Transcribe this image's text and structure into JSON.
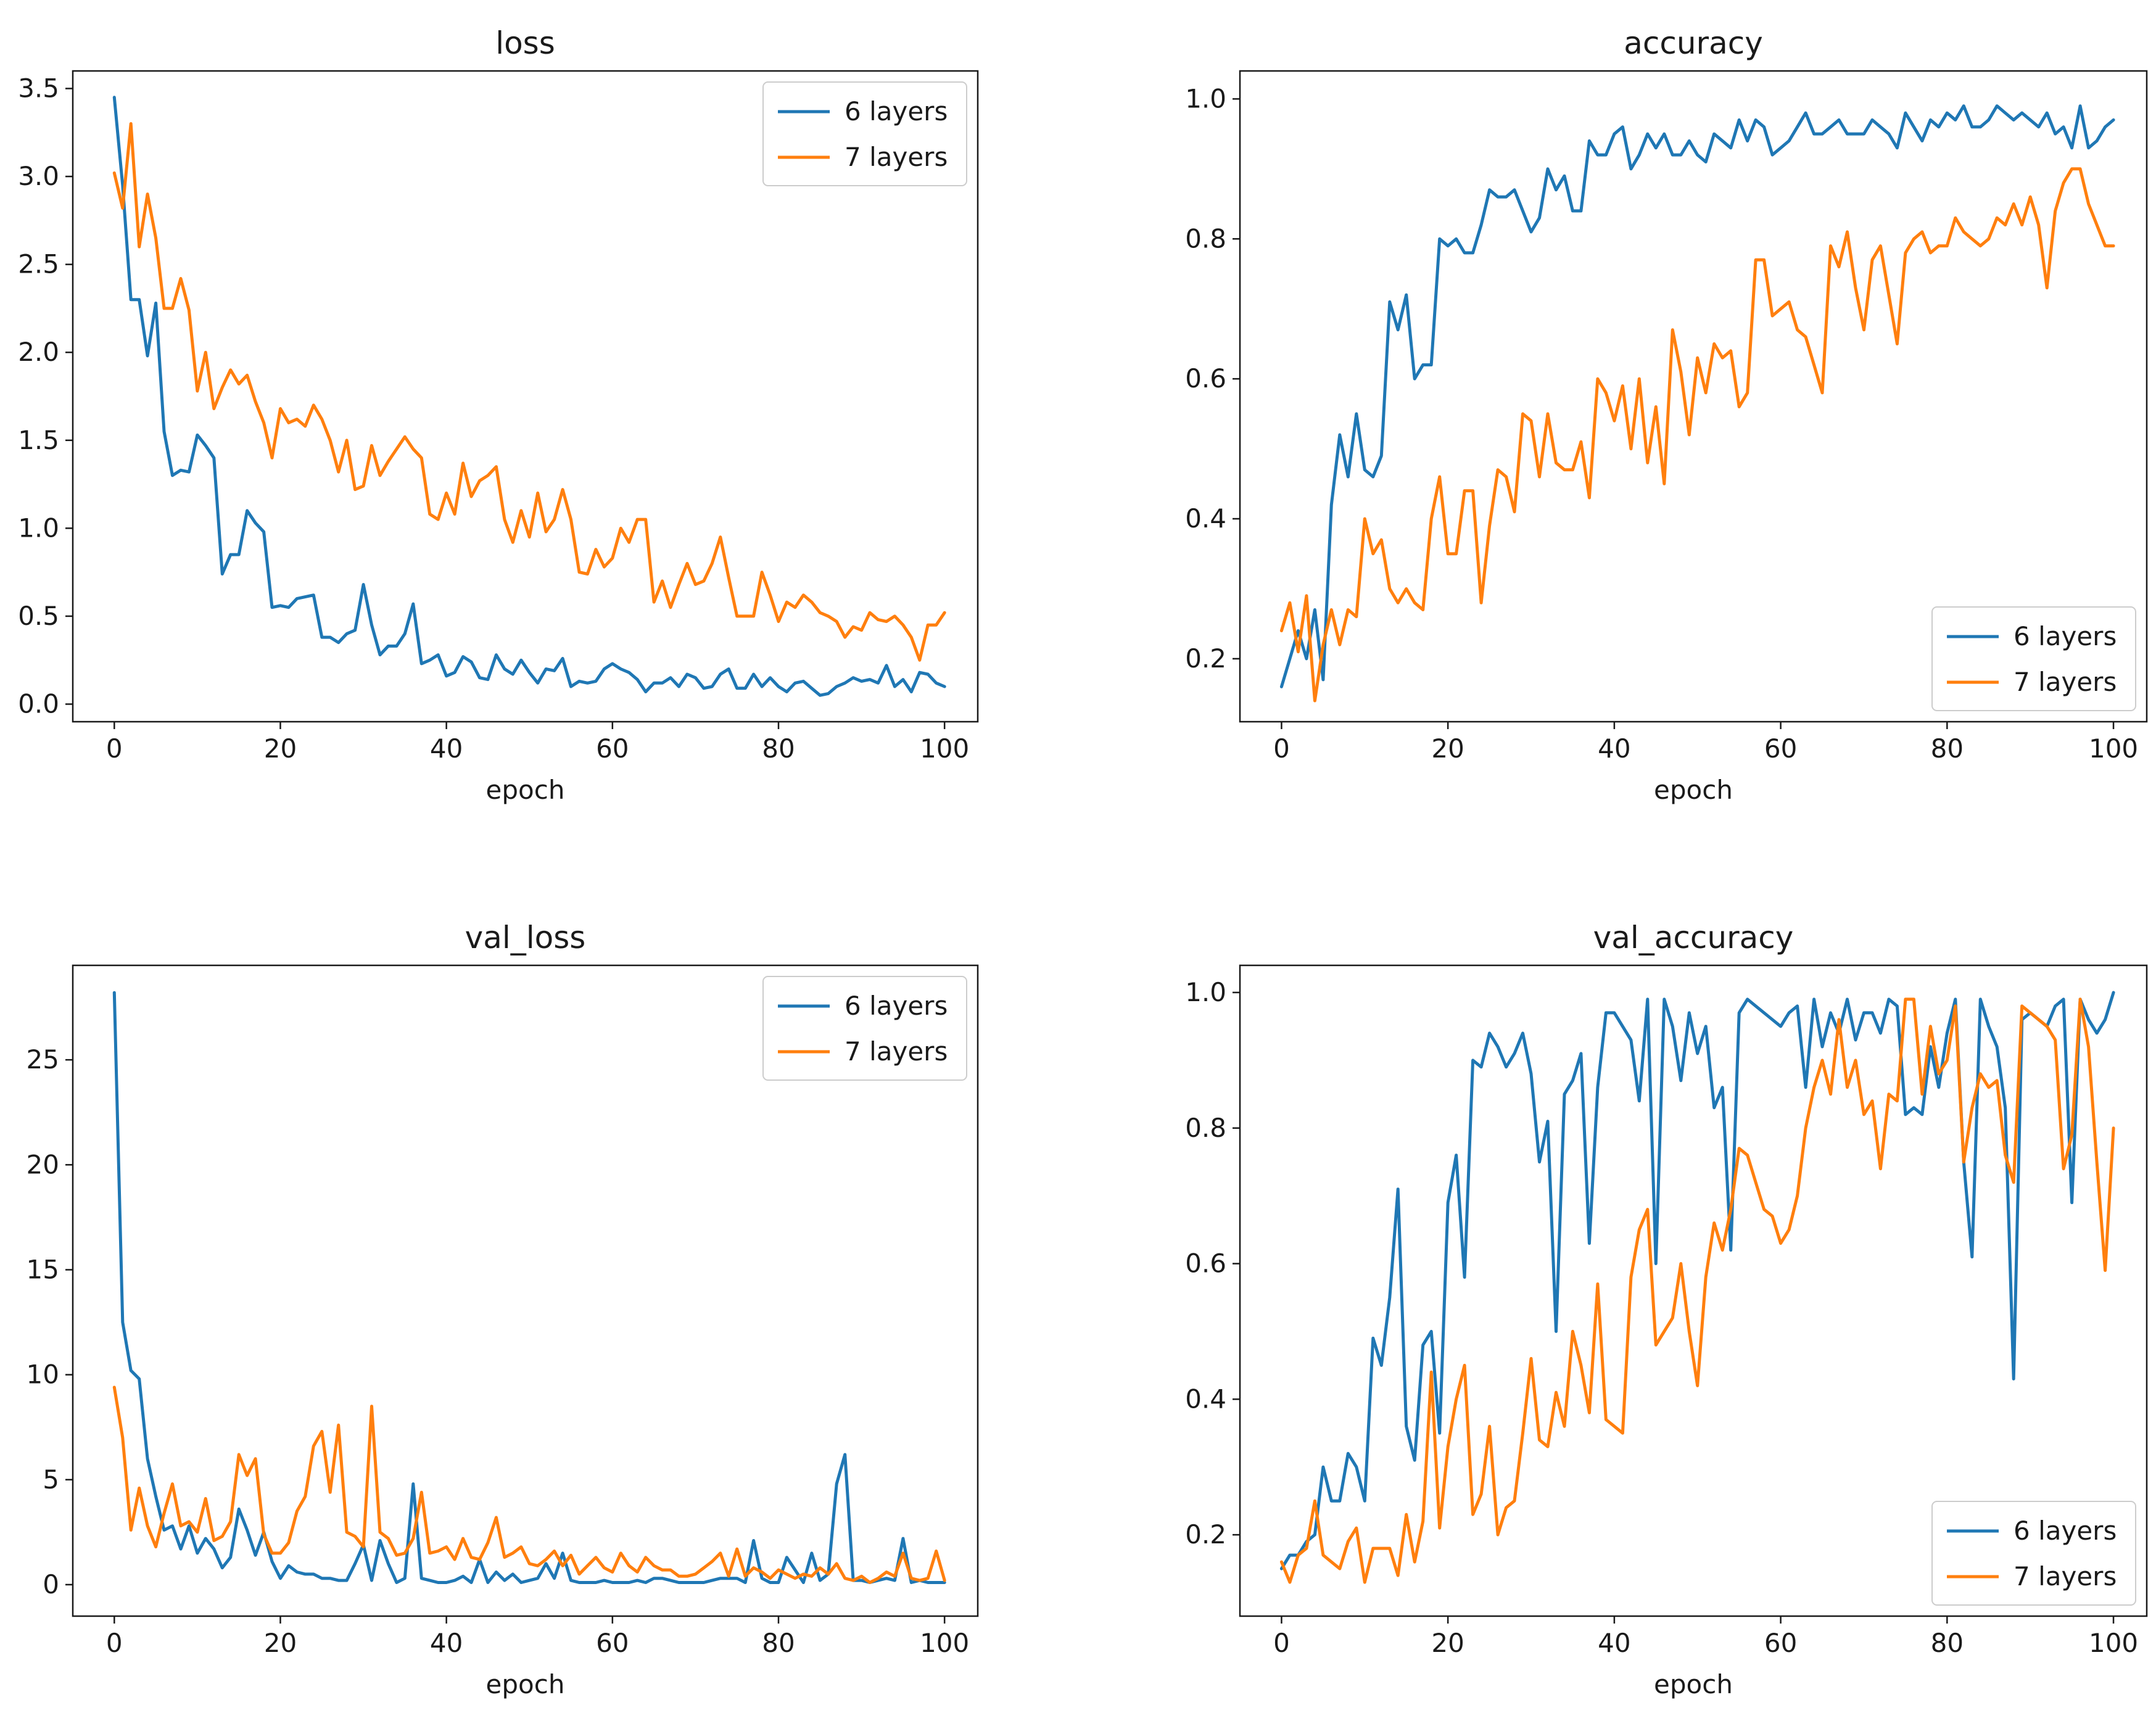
{
  "colors": {
    "series_0": "#1f77b4",
    "series_1": "#ff7f0e",
    "axes": "#1a1a1a"
  },
  "chart_data": [
    {
      "type": "line",
      "title": "loss",
      "xlabel": "epoch",
      "ylabel": "",
      "xlim": [
        -5,
        104
      ],
      "ylim": [
        -0.1,
        3.6
      ],
      "xticks": [
        0,
        20,
        40,
        60,
        80,
        100
      ],
      "yticks": [
        0.0,
        0.5,
        1.0,
        1.5,
        2.0,
        2.5,
        3.0,
        3.5
      ],
      "ytick_labels": [
        "0.0",
        "0.5",
        "1.0",
        "1.5",
        "2.0",
        "2.5",
        "3.0",
        "3.5"
      ],
      "legend": "top-right",
      "series": [
        {
          "name": "6 layers",
          "values": [
            3.45,
            2.95,
            2.3,
            2.3,
            1.98,
            2.28,
            1.55,
            1.3,
            1.33,
            1.32,
            1.53,
            1.47,
            1.4,
            0.74,
            0.85,
            0.85,
            1.1,
            1.03,
            0.98,
            0.55,
            0.56,
            0.55,
            0.6,
            0.61,
            0.62,
            0.38,
            0.38,
            0.35,
            0.4,
            0.42,
            0.68,
            0.45,
            0.28,
            0.33,
            0.33,
            0.4,
            0.57,
            0.23,
            0.25,
            0.28,
            0.16,
            0.18,
            0.27,
            0.24,
            0.15,
            0.14,
            0.28,
            0.2,
            0.17,
            0.25,
            0.18,
            0.12,
            0.2,
            0.19,
            0.26,
            0.1,
            0.13,
            0.12,
            0.13,
            0.2,
            0.23,
            0.2,
            0.18,
            0.14,
            0.07,
            0.12,
            0.12,
            0.15,
            0.1,
            0.17,
            0.15,
            0.09,
            0.1,
            0.17,
            0.2,
            0.09,
            0.09,
            0.17,
            0.1,
            0.15,
            0.1,
            0.07,
            0.12,
            0.13,
            0.09,
            0.05,
            0.06,
            0.1,
            0.12,
            0.15,
            0.13,
            0.14,
            0.12,
            0.22,
            0.1,
            0.14,
            0.07,
            0.18,
            0.17,
            0.12,
            0.1
          ]
        },
        {
          "name": "7 layers",
          "values": [
            3.02,
            2.82,
            3.3,
            2.6,
            2.9,
            2.65,
            2.25,
            2.25,
            2.42,
            2.24,
            1.78,
            2.0,
            1.68,
            1.8,
            1.9,
            1.82,
            1.87,
            1.72,
            1.6,
            1.4,
            1.68,
            1.6,
            1.62,
            1.58,
            1.7,
            1.62,
            1.5,
            1.32,
            1.5,
            1.22,
            1.24,
            1.47,
            1.3,
            1.38,
            1.45,
            1.52,
            1.45,
            1.4,
            1.08,
            1.05,
            1.2,
            1.08,
            1.37,
            1.18,
            1.27,
            1.3,
            1.35,
            1.05,
            0.92,
            1.1,
            0.95,
            1.2,
            0.98,
            1.05,
            1.22,
            1.05,
            0.75,
            0.74,
            0.88,
            0.78,
            0.83,
            1.0,
            0.92,
            1.05,
            1.05,
            0.58,
            0.7,
            0.55,
            0.68,
            0.8,
            0.68,
            0.7,
            0.8,
            0.95,
            0.72,
            0.5,
            0.5,
            0.5,
            0.75,
            0.62,
            0.47,
            0.58,
            0.55,
            0.62,
            0.58,
            0.52,
            0.5,
            0.47,
            0.38,
            0.44,
            0.42,
            0.52,
            0.48,
            0.47,
            0.5,
            0.45,
            0.38,
            0.25,
            0.45,
            0.45,
            0.52
          ]
        }
      ]
    },
    {
      "type": "line",
      "title": "accuracy",
      "xlabel": "epoch",
      "ylabel": "",
      "xlim": [
        -5,
        104
      ],
      "ylim": [
        0.11,
        1.04
      ],
      "xticks": [
        0,
        20,
        40,
        60,
        80,
        100
      ],
      "yticks": [
        0.2,
        0.4,
        0.6,
        0.8,
        1.0
      ],
      "ytick_labels": [
        "0.2",
        "0.4",
        "0.6",
        "0.8",
        "1.0"
      ],
      "legend": "bottom-right",
      "series": [
        {
          "name": "6 layers",
          "values": [
            0.16,
            0.2,
            0.24,
            0.2,
            0.27,
            0.17,
            0.42,
            0.52,
            0.46,
            0.55,
            0.47,
            0.46,
            0.49,
            0.71,
            0.67,
            0.72,
            0.6,
            0.62,
            0.62,
            0.8,
            0.79,
            0.8,
            0.78,
            0.78,
            0.82,
            0.87,
            0.86,
            0.86,
            0.87,
            0.84,
            0.81,
            0.83,
            0.9,
            0.87,
            0.89,
            0.84,
            0.84,
            0.94,
            0.92,
            0.92,
            0.95,
            0.96,
            0.9,
            0.92,
            0.95,
            0.93,
            0.95,
            0.92,
            0.92,
            0.94,
            0.92,
            0.91,
            0.95,
            0.94,
            0.93,
            0.97,
            0.94,
            0.97,
            0.96,
            0.92,
            0.93,
            0.94,
            0.96,
            0.98,
            0.95,
            0.95,
            0.96,
            0.97,
            0.95,
            0.95,
            0.95,
            0.97,
            0.96,
            0.95,
            0.93,
            0.98,
            0.96,
            0.94,
            0.97,
            0.96,
            0.98,
            0.97,
            0.99,
            0.96,
            0.96,
            0.97,
            0.99,
            0.98,
            0.97,
            0.98,
            0.97,
            0.96,
            0.98,
            0.95,
            0.96,
            0.93,
            0.99,
            0.93,
            0.94,
            0.96,
            0.97
          ]
        },
        {
          "name": "7 layers",
          "values": [
            0.24,
            0.28,
            0.21,
            0.29,
            0.14,
            0.22,
            0.27,
            0.22,
            0.27,
            0.26,
            0.4,
            0.35,
            0.37,
            0.3,
            0.28,
            0.3,
            0.28,
            0.27,
            0.4,
            0.46,
            0.35,
            0.35,
            0.44,
            0.44,
            0.28,
            0.39,
            0.47,
            0.46,
            0.41,
            0.55,
            0.54,
            0.46,
            0.55,
            0.48,
            0.47,
            0.47,
            0.51,
            0.43,
            0.6,
            0.58,
            0.54,
            0.59,
            0.5,
            0.6,
            0.48,
            0.56,
            0.45,
            0.67,
            0.61,
            0.52,
            0.63,
            0.58,
            0.65,
            0.63,
            0.64,
            0.56,
            0.58,
            0.77,
            0.77,
            0.69,
            0.7,
            0.71,
            0.67,
            0.66,
            0.62,
            0.58,
            0.79,
            0.76,
            0.81,
            0.73,
            0.67,
            0.77,
            0.79,
            0.72,
            0.65,
            0.78,
            0.8,
            0.81,
            0.78,
            0.79,
            0.79,
            0.83,
            0.81,
            0.8,
            0.79,
            0.8,
            0.83,
            0.82,
            0.85,
            0.82,
            0.86,
            0.82,
            0.73,
            0.84,
            0.88,
            0.9,
            0.9,
            0.85,
            0.82,
            0.79,
            0.79
          ]
        }
      ]
    },
    {
      "type": "line",
      "title": "val_loss",
      "xlabel": "epoch",
      "ylabel": "",
      "xlim": [
        -5,
        104
      ],
      "ylim": [
        -1.5,
        29.5
      ],
      "xticks": [
        0,
        20,
        40,
        60,
        80,
        100
      ],
      "yticks": [
        0,
        5,
        10,
        15,
        20,
        25
      ],
      "ytick_labels": [
        "0",
        "5",
        "10",
        "15",
        "20",
        "25"
      ],
      "legend": "top-right",
      "series": [
        {
          "name": "6 layers",
          "values": [
            28.2,
            12.5,
            10.2,
            9.8,
            6.0,
            4.2,
            2.6,
            2.8,
            1.7,
            2.8,
            1.5,
            2.2,
            1.7,
            0.8,
            1.3,
            3.6,
            2.6,
            1.4,
            2.5,
            1.1,
            0.3,
            0.9,
            0.6,
            0.5,
            0.5,
            0.3,
            0.3,
            0.2,
            0.2,
            1.0,
            1.9,
            0.2,
            2.1,
            1.0,
            0.1,
            0.3,
            4.8,
            0.3,
            0.2,
            0.1,
            0.1,
            0.2,
            0.4,
            0.1,
            1.2,
            0.1,
            0.6,
            0.2,
            0.5,
            0.1,
            0.2,
            0.3,
            1.0,
            0.3,
            1.5,
            0.2,
            0.1,
            0.1,
            0.1,
            0.2,
            0.1,
            0.1,
            0.1,
            0.2,
            0.1,
            0.3,
            0.3,
            0.2,
            0.1,
            0.1,
            0.1,
            0.1,
            0.2,
            0.3,
            0.3,
            0.3,
            0.1,
            2.1,
            0.3,
            0.1,
            0.1,
            1.3,
            0.7,
            0.1,
            1.5,
            0.2,
            0.5,
            4.8,
            6.2,
            0.2,
            0.2,
            0.1,
            0.2,
            0.3,
            0.2,
            2.2,
            0.1,
            0.2,
            0.1,
            0.1,
            0.1
          ]
        },
        {
          "name": "7 layers",
          "values": [
            9.4,
            7.0,
            2.6,
            4.6,
            2.8,
            1.8,
            3.4,
            4.8,
            2.8,
            3.0,
            2.5,
            4.1,
            2.1,
            2.3,
            3.0,
            6.2,
            5.2,
            6.0,
            2.4,
            1.5,
            1.5,
            2.0,
            3.5,
            4.2,
            6.6,
            7.3,
            4.4,
            7.6,
            2.5,
            2.3,
            1.8,
            8.5,
            2.5,
            2.2,
            1.4,
            1.5,
            2.2,
            4.4,
            1.5,
            1.6,
            1.8,
            1.2,
            2.2,
            1.3,
            1.2,
            2.0,
            3.2,
            1.3,
            1.5,
            1.8,
            1.0,
            0.9,
            1.2,
            1.6,
            0.9,
            1.4,
            0.5,
            0.9,
            1.3,
            0.8,
            0.6,
            1.5,
            0.9,
            0.6,
            1.3,
            0.9,
            0.7,
            0.7,
            0.4,
            0.4,
            0.5,
            0.8,
            1.1,
            1.5,
            0.4,
            1.7,
            0.4,
            0.8,
            0.6,
            0.3,
            0.7,
            0.5,
            0.3,
            0.5,
            0.4,
            0.8,
            0.5,
            1.0,
            0.3,
            0.2,
            0.4,
            0.1,
            0.3,
            0.6,
            0.4,
            1.5,
            0.3,
            0.2,
            0.3,
            1.6,
            0.2
          ]
        }
      ]
    },
    {
      "type": "line",
      "title": "val_accuracy",
      "xlabel": "epoch",
      "ylabel": "",
      "xlim": [
        -5,
        104
      ],
      "ylim": [
        0.08,
        1.04
      ],
      "xticks": [
        0,
        20,
        40,
        60,
        80,
        100
      ],
      "yticks": [
        0.2,
        0.4,
        0.6,
        0.8,
        1.0
      ],
      "ytick_labels": [
        "0.2",
        "0.4",
        "0.6",
        "0.8",
        "1.0"
      ],
      "legend": "bottom-right",
      "series": [
        {
          "name": "6 layers",
          "values": [
            0.15,
            0.17,
            0.17,
            0.19,
            0.2,
            0.3,
            0.25,
            0.25,
            0.32,
            0.3,
            0.25,
            0.49,
            0.45,
            0.55,
            0.71,
            0.36,
            0.31,
            0.48,
            0.5,
            0.35,
            0.69,
            0.76,
            0.58,
            0.9,
            0.89,
            0.94,
            0.92,
            0.89,
            0.91,
            0.94,
            0.88,
            0.75,
            0.81,
            0.5,
            0.85,
            0.87,
            0.91,
            0.63,
            0.86,
            0.97,
            0.97,
            0.95,
            0.93,
            0.84,
            0.99,
            0.6,
            0.99,
            0.95,
            0.87,
            0.97,
            0.91,
            0.95,
            0.83,
            0.86,
            0.62,
            0.97,
            0.99,
            0.98,
            0.97,
            0.96,
            0.95,
            0.97,
            0.98,
            0.86,
            0.99,
            0.92,
            0.97,
            0.94,
            0.99,
            0.93,
            0.97,
            0.97,
            0.94,
            0.99,
            0.98,
            0.82,
            0.83,
            0.82,
            0.92,
            0.86,
            0.94,
            0.99,
            0.75,
            0.61,
            0.99,
            0.95,
            0.92,
            0.83,
            0.43,
            0.96,
            0.97,
            0.96,
            0.95,
            0.98,
            0.99,
            0.69,
            0.99,
            0.96,
            0.94,
            0.96,
            1.0
          ]
        },
        {
          "name": "7 layers",
          "values": [
            0.16,
            0.13,
            0.17,
            0.18,
            0.25,
            0.17,
            0.16,
            0.15,
            0.19,
            0.21,
            0.13,
            0.18,
            0.18,
            0.18,
            0.14,
            0.23,
            0.16,
            0.22,
            0.44,
            0.21,
            0.33,
            0.4,
            0.45,
            0.23,
            0.26,
            0.36,
            0.2,
            0.24,
            0.25,
            0.35,
            0.46,
            0.34,
            0.33,
            0.41,
            0.36,
            0.5,
            0.45,
            0.38,
            0.57,
            0.37,
            0.36,
            0.35,
            0.58,
            0.65,
            0.68,
            0.48,
            0.5,
            0.52,
            0.6,
            0.5,
            0.42,
            0.58,
            0.66,
            0.62,
            0.68,
            0.77,
            0.76,
            0.72,
            0.68,
            0.67,
            0.63,
            0.65,
            0.7,
            0.8,
            0.86,
            0.9,
            0.85,
            0.96,
            0.86,
            0.9,
            0.82,
            0.84,
            0.74,
            0.85,
            0.84,
            0.99,
            0.99,
            0.85,
            0.95,
            0.88,
            0.9,
            0.98,
            0.75,
            0.83,
            0.88,
            0.86,
            0.87,
            0.76,
            0.72,
            0.98,
            0.97,
            0.96,
            0.95,
            0.93,
            0.74,
            0.79,
            0.99,
            0.92,
            0.75,
            0.59,
            0.8
          ]
        }
      ]
    }
  ]
}
